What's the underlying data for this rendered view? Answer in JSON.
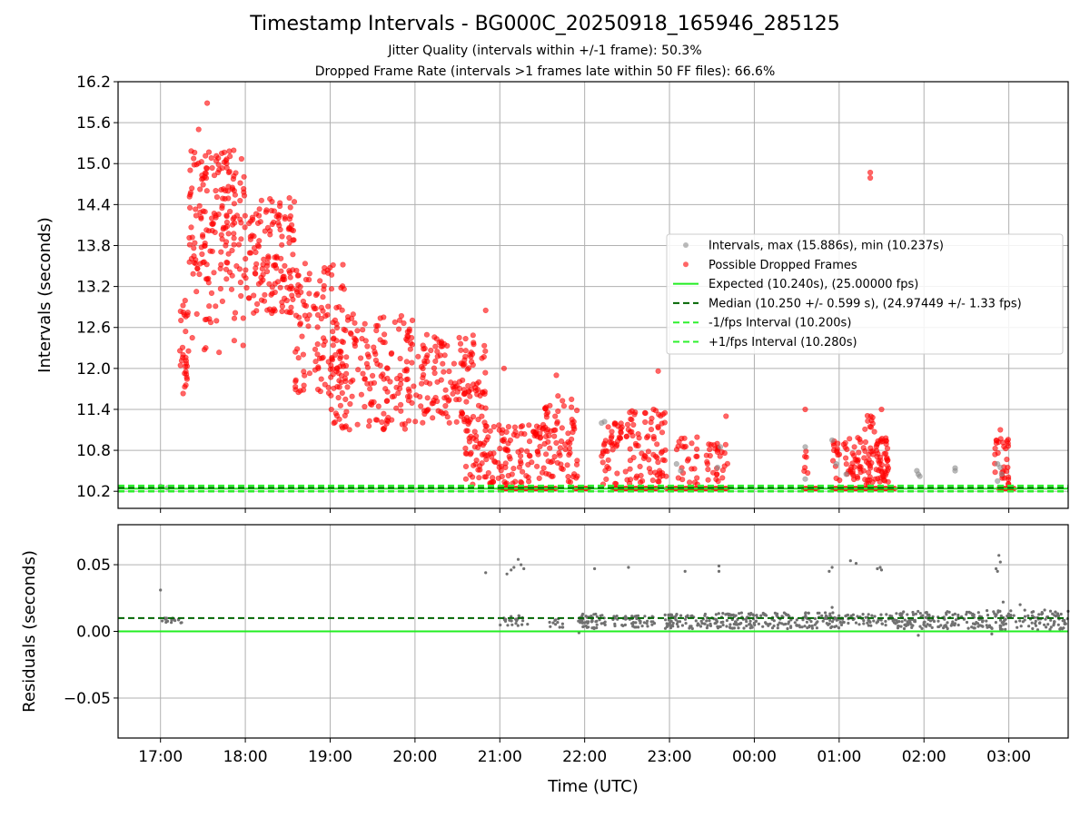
{
  "page": {
    "title": "Timestamp Intervals - BG000C_20250918_165946_285125",
    "subtitle_1": "Jitter Quality (intervals within +/-1 frame): 50.3%",
    "subtitle_2": "Dropped Frame Rate (intervals >1 frames late within 50 FF files): 66.6%"
  },
  "colors": {
    "intervals": "#8c8c8c",
    "dropped": "#ff0000",
    "expected": "#22ee22",
    "median": "#006400",
    "fps_bounds": "#2ef02e",
    "residuals": "#707070",
    "grid": "#b0b0b0"
  },
  "chart_data": [
    {
      "id": "intervals",
      "type": "scatter",
      "ylabel": "Intervals (seconds)",
      "ylim": [
        9.95,
        16.2
      ],
      "yticks": [
        "10.2",
        "10.8",
        "11.4",
        "12.0",
        "12.6",
        "13.2",
        "13.8",
        "14.4",
        "15.0",
        "15.6",
        "16.2"
      ],
      "xlim": [
        "16:30",
        "03:42"
      ],
      "grid": true,
      "legend_position": "center-right",
      "legend": [
        {
          "key": "intervals",
          "label": "Intervals, max (15.886s), min (10.237s)",
          "marker": "dot"
        },
        {
          "key": "dropped",
          "label": "Possible Dropped Frames",
          "marker": "dot"
        },
        {
          "key": "expected",
          "label": "Expected (10.240s), (25.00000 fps)",
          "marker": "line"
        },
        {
          "key": "median",
          "label": "Median (10.250 +/- 0.599 s), (24.97449 +/- 1.33 fps)",
          "marker": "dash"
        },
        {
          "key": "minus",
          "label": "-1/fps Interval (10.200s)",
          "marker": "dash"
        },
        {
          "key": "plus",
          "label": "+1/fps Interval (10.280s)",
          "marker": "dash"
        }
      ],
      "reference_lines": {
        "expected": 10.24,
        "median": 10.25,
        "minus_fps": 10.2,
        "plus_fps": 10.28
      },
      "series": [
        {
          "key": "dropped",
          "clusters": [
            {
              "start": "17:13",
              "end": "17:20",
              "y_low": 11.6,
              "y_high": 13.0,
              "count": 30
            },
            {
              "start": "17:20",
              "end": "18:00",
              "y_low": 13.3,
              "y_high": 15.2,
              "count": 170
            },
            {
              "start": "17:20",
              "end": "18:00",
              "y_low": 12.2,
              "y_high": 13.3,
              "count": 25
            },
            {
              "start": "18:00",
              "end": "18:35",
              "y_low": 12.8,
              "y_high": 14.5,
              "count": 140
            },
            {
              "start": "18:35",
              "end": "19:10",
              "y_low": 11.6,
              "y_high": 13.6,
              "count": 110
            },
            {
              "start": "19:00",
              "end": "20:00",
              "y_low": 11.1,
              "y_high": 12.8,
              "count": 180
            },
            {
              "start": "20:00",
              "end": "20:50",
              "y_low": 11.2,
              "y_high": 12.5,
              "count": 150
            },
            {
              "start": "20:35",
              "end": "21:30",
              "y_low": 10.3,
              "y_high": 11.2,
              "count": 140
            },
            {
              "start": "21:30",
              "end": "21:55",
              "y_low": 10.3,
              "y_high": 11.6,
              "count": 80
            },
            {
              "start": "22:12",
              "end": "22:30",
              "y_low": 10.3,
              "y_high": 11.2,
              "count": 45
            },
            {
              "start": "22:30",
              "end": "22:58",
              "y_low": 10.3,
              "y_high": 11.4,
              "count": 80
            },
            {
              "start": "23:05",
              "end": "23:20",
              "y_low": 10.3,
              "y_high": 11.0,
              "count": 25
            },
            {
              "start": "23:25",
              "end": "23:42",
              "y_low": 10.3,
              "y_high": 10.9,
              "count": 30
            },
            {
              "start": "00:35",
              "end": "00:38",
              "y_low": 10.3,
              "y_high": 10.8,
              "count": 6
            },
            {
              "start": "00:55",
              "end": "01:35",
              "y_low": 10.3,
              "y_high": 11.0,
              "count": 120
            },
            {
              "start": "01:18",
              "end": "01:30",
              "y_low": 11.0,
              "y_high": 11.4,
              "count": 10
            },
            {
              "start": "02:50",
              "end": "03:00",
              "y_low": 10.3,
              "y_high": 11.0,
              "count": 30
            }
          ],
          "points": [
            {
              "x": "17:33",
              "y": 15.886
            },
            {
              "x": "17:27",
              "y": 15.5
            },
            {
              "x": "01:22",
              "y": 14.87
            },
            {
              "x": "01:22",
              "y": 14.79
            },
            {
              "x": "18:45",
              "y": 13.3
            },
            {
              "x": "20:50",
              "y": 12.85
            },
            {
              "x": "21:03",
              "y": 12.0
            },
            {
              "x": "21:40",
              "y": 11.9
            },
            {
              "x": "22:52",
              "y": 11.96
            },
            {
              "x": "23:40",
              "y": 11.3
            },
            {
              "x": "00:36",
              "y": 11.4
            },
            {
              "x": "01:30",
              "y": 11.4
            },
            {
              "x": "02:54",
              "y": 11.1
            }
          ],
          "baseline_runs": [
            {
              "start": "21:00",
              "end": "21:40",
              "y": 10.24
            },
            {
              "start": "21:53",
              "end": "22:03",
              "y": 10.24
            },
            {
              "start": "22:20",
              "end": "22:52",
              "y": 10.24
            },
            {
              "start": "22:58",
              "end": "23:28",
              "y": 10.24
            },
            {
              "start": "23:30",
              "end": "23:42",
              "y": 10.24
            },
            {
              "start": "00:35",
              "end": "00:45",
              "y": 10.24
            },
            {
              "start": "00:55",
              "end": "01:40",
              "y": 10.24
            },
            {
              "start": "02:53",
              "end": "03:05",
              "y": 10.24
            }
          ]
        },
        {
          "key": "intervals",
          "points": [
            {
              "x": "17:00",
              "y": 10.27
            },
            {
              "x": "17:05",
              "y": 10.25
            },
            {
              "x": "21:00",
              "y": 10.26
            },
            {
              "x": "22:12",
              "y": 11.2
            },
            {
              "x": "22:14",
              "y": 11.22
            },
            {
              "x": "23:05",
              "y": 10.6
            },
            {
              "x": "23:08",
              "y": 10.5
            },
            {
              "x": "23:36",
              "y": 10.85
            },
            {
              "x": "23:34",
              "y": 10.55
            },
            {
              "x": "00:36",
              "y": 10.85
            },
            {
              "x": "00:36",
              "y": 10.38
            },
            {
              "x": "00:55",
              "y": 10.95
            },
            {
              "x": "00:58",
              "y": 10.6
            },
            {
              "x": "01:05",
              "y": 10.45
            },
            {
              "x": "01:55",
              "y": 10.5
            },
            {
              "x": "01:56",
              "y": 10.45
            },
            {
              "x": "01:57",
              "y": 10.42
            },
            {
              "x": "02:22",
              "y": 10.54
            },
            {
              "x": "02:22",
              "y": 10.5
            },
            {
              "x": "02:52",
              "y": 10.6
            },
            {
              "x": "02:54",
              "y": 10.55
            },
            {
              "x": "02:55",
              "y": 10.45
            },
            {
              "x": "02:52",
              "y": 10.35
            }
          ]
        }
      ]
    },
    {
      "id": "residuals",
      "type": "scatter",
      "xlabel": "Time (UTC)",
      "ylabel": "Residuals (seconds)",
      "ylim": [
        -0.08,
        0.08
      ],
      "yticks": [
        "−0.05",
        "0.00",
        "0.05"
      ],
      "ytick_values": [
        -0.05,
        0.0,
        0.05
      ],
      "xticks": [
        "17:00",
        "18:00",
        "19:00",
        "20:00",
        "21:00",
        "22:00",
        "23:00",
        "00:00",
        "01:00",
        "02:00",
        "03:00"
      ],
      "xlim": [
        "16:30",
        "03:42"
      ],
      "grid": true,
      "reference_lines": {
        "zero": 0.0,
        "median": 0.01
      },
      "series": [
        {
          "key": "residuals",
          "clusters": [
            {
              "start": "17:00",
              "end": "17:15",
              "y_low": 0.006,
              "y_high": 0.01,
              "count": 20
            },
            {
              "start": "21:00",
              "end": "21:20",
              "y_low": 0.004,
              "y_high": 0.012,
              "count": 25
            },
            {
              "start": "21:35",
              "end": "21:45",
              "y_low": 0.003,
              "y_high": 0.012,
              "count": 12
            },
            {
              "start": "21:55",
              "end": "22:15",
              "y_low": 0.002,
              "y_high": 0.013,
              "count": 50
            },
            {
              "start": "22:20",
              "end": "22:50",
              "y_low": 0.003,
              "y_high": 0.012,
              "count": 50
            },
            {
              "start": "22:55",
              "end": "23:30",
              "y_low": 0.002,
              "y_high": 0.013,
              "count": 70
            },
            {
              "start": "23:30",
              "end": "00:10",
              "y_low": 0.002,
              "y_high": 0.014,
              "count": 90
            },
            {
              "start": "00:10",
              "end": "01:00",
              "y_low": 0.002,
              "y_high": 0.014,
              "count": 100
            },
            {
              "start": "01:00",
              "end": "01:40",
              "y_low": 0.004,
              "y_high": 0.013,
              "count": 60
            },
            {
              "start": "01:40",
              "end": "02:40",
              "y_low": 0.002,
              "y_high": 0.015,
              "count": 130
            },
            {
              "start": "02:40",
              "end": "03:42",
              "y_low": 0.001,
              "y_high": 0.016,
              "count": 120
            }
          ],
          "points": [
            {
              "x": "17:00",
              "y": 0.031
            },
            {
              "x": "20:50",
              "y": 0.044
            },
            {
              "x": "21:05",
              "y": 0.043
            },
            {
              "x": "21:08",
              "y": 0.046
            },
            {
              "x": "21:10",
              "y": 0.048
            },
            {
              "x": "21:13",
              "y": 0.054
            },
            {
              "x": "21:15",
              "y": 0.05
            },
            {
              "x": "21:17",
              "y": 0.047
            },
            {
              "x": "22:07",
              "y": 0.047
            },
            {
              "x": "22:31",
              "y": 0.048
            },
            {
              "x": "23:11",
              "y": 0.045
            },
            {
              "x": "23:35",
              "y": 0.049
            },
            {
              "x": "23:35",
              "y": 0.045
            },
            {
              "x": "00:53",
              "y": 0.045
            },
            {
              "x": "00:55",
              "y": 0.048
            },
            {
              "x": "01:08",
              "y": 0.053
            },
            {
              "x": "01:12",
              "y": 0.051
            },
            {
              "x": "01:27",
              "y": 0.047
            },
            {
              "x": "01:29",
              "y": 0.048
            },
            {
              "x": "01:30",
              "y": 0.046
            },
            {
              "x": "02:51",
              "y": 0.047
            },
            {
              "x": "02:52",
              "y": 0.045
            },
            {
              "x": "02:53",
              "y": 0.057
            },
            {
              "x": "02:54",
              "y": 0.052
            },
            {
              "x": "02:56",
              "y": 0.022
            },
            {
              "x": "00:55",
              "y": 0.018
            },
            {
              "x": "01:56",
              "y": -0.003
            },
            {
              "x": "21:56",
              "y": -0.001
            },
            {
              "x": "02:48",
              "y": -0.002
            },
            {
              "x": "03:08",
              "y": 0.02
            }
          ]
        }
      ]
    }
  ]
}
